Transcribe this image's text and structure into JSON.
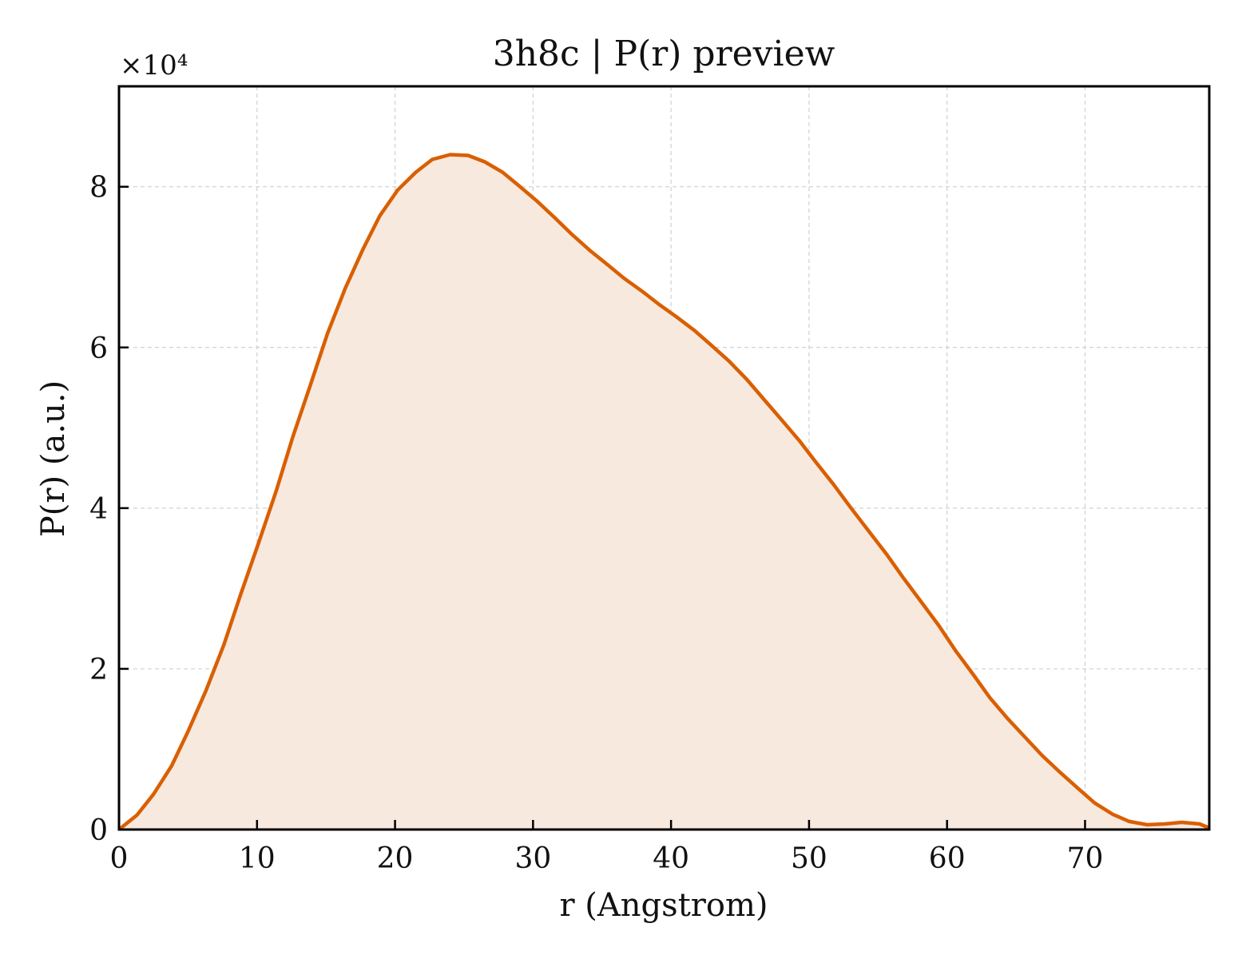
{
  "colors": {
    "line": "#d95f02",
    "fill": "#f8e9df",
    "grid": "#d0d0d0",
    "axis": "#000000"
  },
  "chart_data": {
    "type": "area",
    "title": "3h8c | P(r) preview",
    "xlabel": "r (Angstrom)",
    "ylabel": "P(r) (a.u.)",
    "y_multiplier": "×10⁴",
    "xlim": [
      0,
      79
    ],
    "ylim": [
      0,
      9.25
    ],
    "y_scale_factor": 10000,
    "grid": true,
    "x_ticks": [
      0,
      10,
      20,
      30,
      40,
      50,
      60,
      70
    ],
    "y_ticks": [
      0,
      2,
      4,
      6,
      8
    ],
    "x_tick_labels": [
      "0",
      "10",
      "20",
      "30",
      "40",
      "50",
      "60",
      "70"
    ],
    "y_tick_labels": [
      "0",
      "2",
      "4",
      "6",
      "8"
    ],
    "series": [
      {
        "x": [
          0,
          1.3,
          2.5,
          3.8,
          5.0,
          6.3,
          7.6,
          8.8,
          10.1,
          11.4,
          12.6,
          13.9,
          15.1,
          16.4,
          17.7,
          18.9,
          20.2,
          21.5,
          22.7,
          24.0,
          25.3,
          26.5,
          27.8,
          29.0,
          30.3,
          31.6,
          32.8,
          34.1,
          35.4,
          36.6,
          37.9,
          39.1,
          40.4,
          41.7,
          42.9,
          44.2,
          45.5,
          46.7,
          48.0,
          49.3,
          50.5,
          51.8,
          53.0,
          54.3,
          55.6,
          56.8,
          58.1,
          59.4,
          60.6,
          61.9,
          63.1,
          64.4,
          65.7,
          66.9,
          68.2,
          69.5,
          70.7,
          72.0,
          73.2,
          74.5,
          75.8,
          77.0,
          78.3,
          79.0
        ],
        "values": [
          0,
          0.18,
          0.44,
          0.79,
          1.22,
          1.73,
          2.3,
          2.92,
          3.56,
          4.22,
          4.89,
          5.55,
          6.17,
          6.74,
          7.23,
          7.64,
          7.96,
          8.18,
          8.34,
          8.4,
          8.39,
          8.31,
          8.18,
          8.01,
          7.82,
          7.61,
          7.41,
          7.21,
          7.03,
          6.86,
          6.7,
          6.54,
          6.38,
          6.21,
          6.03,
          5.83,
          5.6,
          5.36,
          5.1,
          4.84,
          4.57,
          4.29,
          4.01,
          3.72,
          3.43,
          3.14,
          2.84,
          2.54,
          2.23,
          1.93,
          1.64,
          1.38,
          1.14,
          0.92,
          0.71,
          0.51,
          0.33,
          0.19,
          0.1,
          0.06,
          0.07,
          0.09,
          0.07,
          0.02
        ]
      }
    ]
  }
}
